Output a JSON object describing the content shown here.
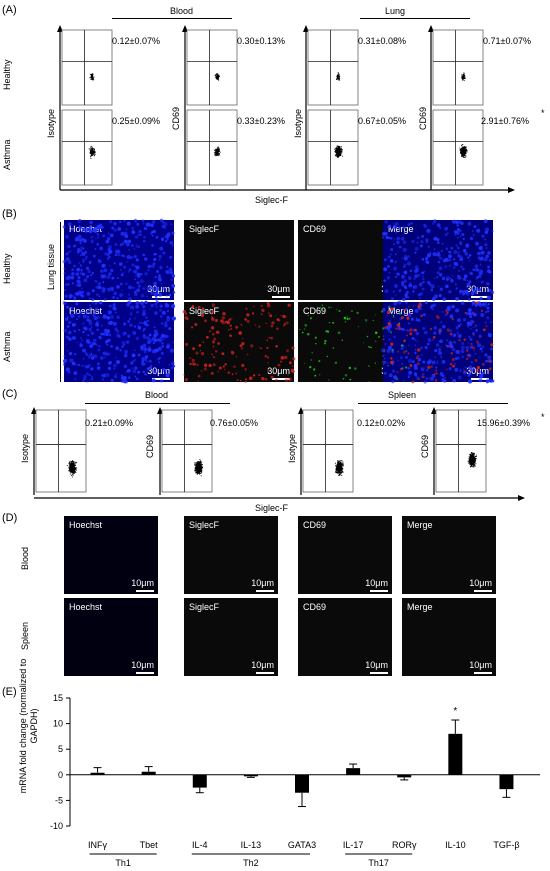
{
  "panelA": {
    "label": "(A)",
    "group1": "Blood",
    "group2": "Lung",
    "rows": [
      "Healthy",
      "Asthma"
    ],
    "ylabels": [
      "Isotype",
      "CD69",
      "Isotype",
      "CD69"
    ],
    "xaxis": "Siglec-F",
    "values": [
      [
        "0.12±0.07%",
        "0.30±0.13%",
        "0.31±0.08%",
        "0.71±0.07%"
      ],
      [
        "0.25±0.09%",
        "0.33±0.23%",
        "0.67±0.05%",
        "2.91±0.76%"
      ]
    ],
    "star": "*"
  },
  "panelB": {
    "label": "(B)",
    "side": "Lung tissue",
    "rows": [
      "Healthy",
      "Asthma"
    ],
    "channels": [
      "Hoechst",
      "SiglecF",
      "CD69",
      "Merge"
    ],
    "scale": "30μm"
  },
  "panelC": {
    "label": "(C)",
    "group1": "Blood",
    "group2": "Spleen",
    "ylabels": [
      "Isotype",
      "CD69",
      "Isotype",
      "CD69"
    ],
    "values": [
      "0.21±0.09%",
      "0.76±0.05%",
      "0.12±0.02%",
      "15.96±0.39%"
    ],
    "xaxis": "Siglec-F",
    "star": "*"
  },
  "panelD": {
    "label": "(D)",
    "rows": [
      "Blood",
      "Spleen"
    ],
    "channels": [
      "Hoechst",
      "SiglecF",
      "CD69",
      "Merge"
    ],
    "scale": "10μm"
  },
  "panelE": {
    "label": "(E)",
    "star": "*",
    "groups": [
      "Th1",
      "Th2",
      "Th17"
    ]
  },
  "chart_data": {
    "type": "bar",
    "categories": [
      "INFγ",
      "Tbet",
      "IL-4",
      "IL-13",
      "GATA3",
      "IL-17",
      "RORγ",
      "IL-10",
      "TGF-β"
    ],
    "values": [
      0.4,
      0.6,
      -2.5,
      -0.3,
      -3.5,
      1.3,
      -0.5,
      8.0,
      -2.8
    ],
    "errors": [
      1.0,
      1.0,
      1.0,
      0.2,
      2.7,
      0.8,
      0.5,
      2.7,
      1.6
    ],
    "ylabel": "mRNA fold change (normalized to GAPDH)",
    "ylim": [
      -10,
      15
    ],
    "yticks": [
      -10,
      -5,
      0,
      5,
      10,
      15
    ],
    "groups": [
      {
        "name": "Th1",
        "span": [
          0,
          1
        ]
      },
      {
        "name": "Th2",
        "span": [
          2,
          4
        ]
      },
      {
        "name": "Th17",
        "span": [
          5,
          6
        ]
      }
    ]
  }
}
